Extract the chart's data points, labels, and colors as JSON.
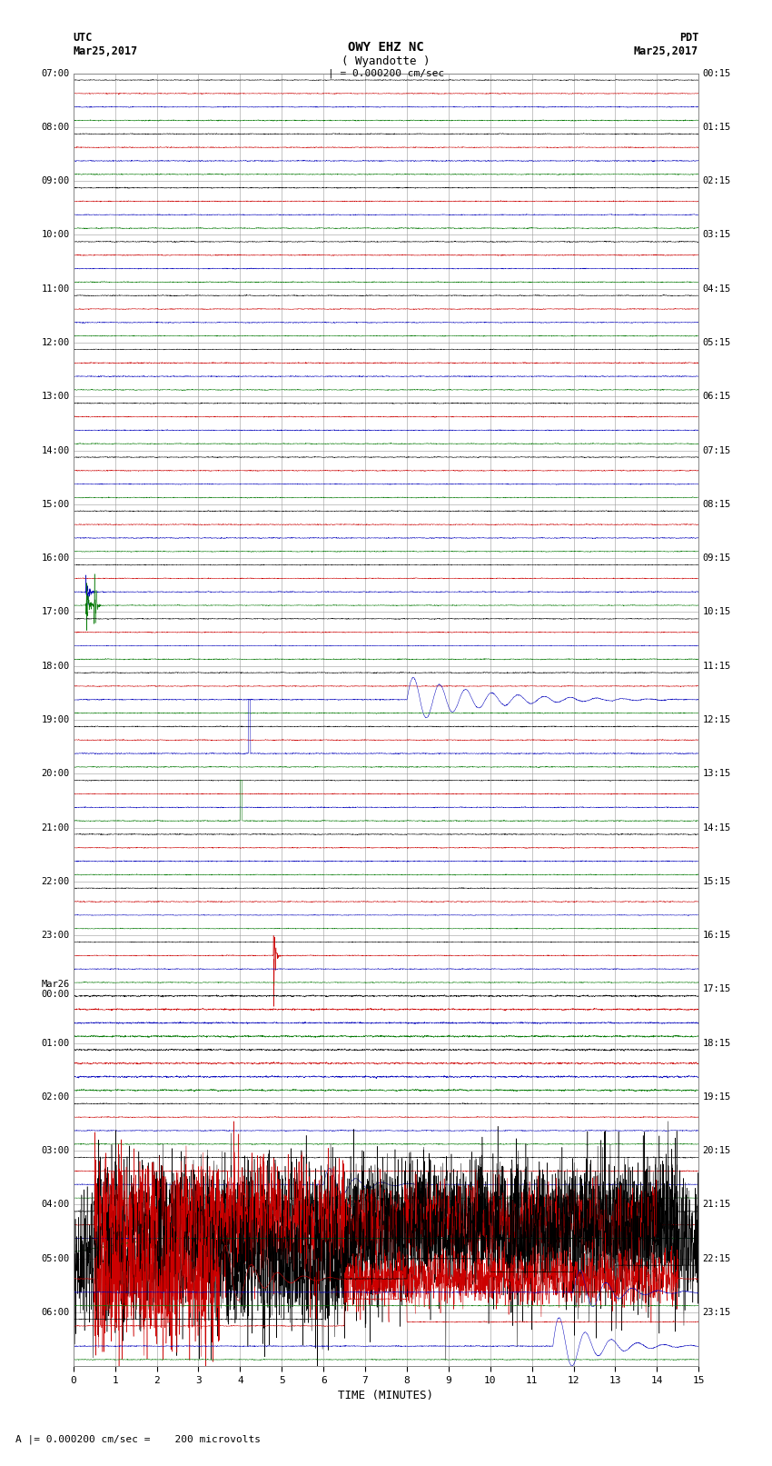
{
  "title_line1": "OWY EHZ NC",
  "title_line2": "( Wyandotte )",
  "scale_label": "| = 0.000200 cm/sec",
  "left_timezone": "UTC",
  "left_date": "Mar25,2017",
  "right_timezone": "PDT",
  "right_date": "Mar25,2017",
  "xlabel": "TIME (MINUTES)",
  "footer_label": "A |= 0.000200 cm/sec =    200 microvolts",
  "num_rows": 24,
  "minutes_per_row": 15,
  "spm": 200,
  "fig_width": 8.5,
  "fig_height": 16.13,
  "dpi": 100,
  "colors": [
    "#000000",
    "#cc0000",
    "#0000bb",
    "#007700"
  ],
  "background_color": "#ffffff",
  "grid_color": "#999999",
  "utc_right_labels": [
    "00:15",
    "01:15",
    "02:15",
    "03:15",
    "04:15",
    "05:15",
    "06:15",
    "07:15",
    "08:15",
    "09:15",
    "10:15",
    "11:15",
    "12:15",
    "13:15",
    "14:15",
    "15:15",
    "16:15",
    "17:15",
    "18:15",
    "19:15",
    "20:15",
    "21:15",
    "22:15",
    "23:15"
  ],
  "utc_left_labels": [
    "07:00",
    "08:00",
    "09:00",
    "10:00",
    "11:00",
    "12:00",
    "13:00",
    "14:00",
    "15:00",
    "16:00",
    "17:00",
    "18:00",
    "19:00",
    "20:00",
    "21:00",
    "22:00",
    "23:00",
    "Mar26\n00:00",
    "01:00",
    "02:00",
    "03:00",
    "04:00",
    "05:00",
    "06:00"
  ],
  "noise_amp": 0.055,
  "event_amp": 0.35
}
